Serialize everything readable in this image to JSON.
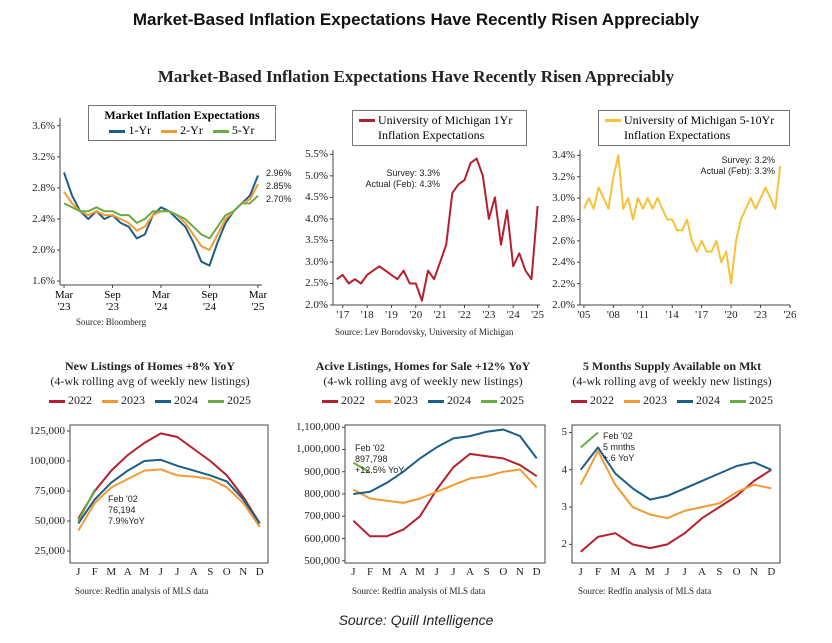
{
  "header": {
    "title": "Market-Based Inflation Expectations Have Recently Risen Appreciably"
  },
  "figure": {
    "title": "Market-Based Inflation Expectations Have Recently Risen Appreciably"
  },
  "footer": {
    "source": "Source: Quill Intelligence"
  },
  "chart_data": [
    {
      "type": "line",
      "title": "Market Inflation Expectations",
      "categories": [
        "Mar '23",
        null,
        null,
        null,
        null,
        null,
        "Sep '23",
        null,
        null,
        null,
        null,
        null,
        "Mar '24",
        null,
        null,
        null,
        null,
        null,
        "Sep '24",
        null,
        null,
        null,
        null,
        null,
        "Mar '25"
      ],
      "series": [
        {
          "name": "1-Yr",
          "color": "#1d5e87",
          "values": [
            3.0,
            2.7,
            2.5,
            2.4,
            2.5,
            2.4,
            2.45,
            2.35,
            2.3,
            2.15,
            2.2,
            2.45,
            2.55,
            2.5,
            2.4,
            2.3,
            2.1,
            1.85,
            1.8,
            2.1,
            2.35,
            2.5,
            2.6,
            2.7,
            2.96
          ]
        },
        {
          "name": "2-Yr",
          "color": "#f39a32",
          "values": [
            2.75,
            2.6,
            2.5,
            2.45,
            2.5,
            2.45,
            2.45,
            2.4,
            2.35,
            2.25,
            2.3,
            2.45,
            2.5,
            2.5,
            2.45,
            2.35,
            2.2,
            2.05,
            2.0,
            2.2,
            2.4,
            2.5,
            2.6,
            2.65,
            2.85
          ]
        },
        {
          "name": "5-Yr",
          "color": "#6aab46",
          "values": [
            2.6,
            2.55,
            2.5,
            2.5,
            2.55,
            2.5,
            2.5,
            2.45,
            2.45,
            2.35,
            2.4,
            2.5,
            2.5,
            2.5,
            2.45,
            2.4,
            2.3,
            2.2,
            2.15,
            2.3,
            2.45,
            2.5,
            2.6,
            2.6,
            2.7
          ]
        }
      ],
      "ylim": [
        1.55,
        3.7
      ],
      "yticks": [
        {
          "value": 1.6,
          "label": "1.6%"
        },
        {
          "value": 2.0,
          "label": "2.0%"
        },
        {
          "value": 2.4,
          "label": "2.4%"
        },
        {
          "value": 2.8,
          "label": "2.8%"
        },
        {
          "value": 3.2,
          "label": "3.2%"
        },
        {
          "value": 3.6,
          "label": "3.6%"
        }
      ],
      "annotations": [
        "2.96%",
        "2.85%",
        "2.70%"
      ],
      "source": "Source: Bloomberg"
    },
    {
      "type": "line",
      "x": [
        2016.75,
        2017,
        2017.25,
        2017.5,
        2017.75,
        2018,
        2018.25,
        2018.5,
        2018.75,
        2019,
        2019.25,
        2019.5,
        2019.75,
        2020,
        2020.25,
        2020.5,
        2020.75,
        2021,
        2021.25,
        2021.5,
        2021.75,
        2022,
        2022.25,
        2022.5,
        2022.75,
        2023,
        2023.25,
        2023.5,
        2023.75,
        2024,
        2024.25,
        2024.5,
        2024.75,
        2025
      ],
      "series": [
        {
          "name": "University of Michigan 1Yr Inflation Expectations",
          "color": "#b5202e",
          "values": [
            2.6,
            2.7,
            2.5,
            2.6,
            2.5,
            2.7,
            2.8,
            2.9,
            2.8,
            2.7,
            2.6,
            2.8,
            2.5,
            2.5,
            2.1,
            2.8,
            2.6,
            3.0,
            3.4,
            4.6,
            4.8,
            4.9,
            5.3,
            5.4,
            5.0,
            4.0,
            4.5,
            3.4,
            4.2,
            2.9,
            3.2,
            2.8,
            2.6,
            4.3
          ]
        }
      ],
      "xlim": [
        2016.6,
        2025.1
      ],
      "xticks": [
        {
          "value": 2017,
          "label": "'17"
        },
        {
          "value": 2018,
          "label": "'18"
        },
        {
          "value": 2019,
          "label": "'19"
        },
        {
          "value": 2020,
          "label": "'20"
        },
        {
          "value": 2021,
          "label": "'21"
        },
        {
          "value": 2022,
          "label": "'22"
        },
        {
          "value": 2023,
          "label": "'23"
        },
        {
          "value": 2024,
          "label": "'24"
        },
        {
          "value": 2025,
          "label": "'25"
        }
      ],
      "ylim": [
        2.0,
        5.6
      ],
      "yticks": [
        {
          "value": 2.0,
          "label": "2.0%"
        },
        {
          "value": 2.5,
          "label": "2.5%"
        },
        {
          "value": 3.0,
          "label": "3.0%"
        },
        {
          "value": 3.5,
          "label": "3.5%"
        },
        {
          "value": 4.0,
          "label": "4.0%"
        },
        {
          "value": 4.5,
          "label": "4.5%"
        },
        {
          "value": 5.0,
          "label": "5.0%"
        },
        {
          "value": 5.5,
          "label": "5.5%"
        }
      ],
      "annotations": [
        "Survey: 3.3%",
        "Actual (Feb): 4.3%"
      ],
      "source": "Source: Lev Borodovsky, University of Michigan"
    },
    {
      "type": "line",
      "x": [
        2005,
        2005.5,
        2006,
        2006.5,
        2007,
        2007.5,
        2008,
        2008.5,
        2009,
        2009.5,
        2010,
        2010.5,
        2011,
        2011.5,
        2012,
        2012.5,
        2013,
        2013.5,
        2014,
        2014.5,
        2015,
        2015.5,
        2016,
        2016.5,
        2017,
        2017.5,
        2018,
        2018.5,
        2019,
        2019.5,
        2020,
        2020.5,
        2021,
        2021.5,
        2022,
        2022.5,
        2023,
        2023.5,
        2024,
        2024.5,
        2025
      ],
      "series": [
        {
          "name": "University of Michigan 5-10Yr Inflation Expectations",
          "color": "#f7c23a",
          "values": [
            2.9,
            3.0,
            2.9,
            3.1,
            3.0,
            2.9,
            3.2,
            3.4,
            2.9,
            3.0,
            2.8,
            3.0,
            2.9,
            3.0,
            2.9,
            3.0,
            2.9,
            2.8,
            2.8,
            2.7,
            2.7,
            2.8,
            2.6,
            2.5,
            2.6,
            2.5,
            2.5,
            2.6,
            2.4,
            2.5,
            2.2,
            2.6,
            2.8,
            2.9,
            3.0,
            2.9,
            3.0,
            3.1,
            3.0,
            2.9,
            3.3
          ]
        }
      ],
      "xlim": [
        2004.6,
        2026
      ],
      "xticks": [
        {
          "value": 2005,
          "label": "'05"
        },
        {
          "value": 2008,
          "label": "'08"
        },
        {
          "value": 2011,
          "label": "'11"
        },
        {
          "value": 2014,
          "label": "'14"
        },
        {
          "value": 2017,
          "label": "'17"
        },
        {
          "value": 2020,
          "label": "'20"
        },
        {
          "value": 2023,
          "label": "'23"
        },
        {
          "value": 2026,
          "label": "'26"
        }
      ],
      "ylim": [
        2.0,
        3.45
      ],
      "yticks": [
        {
          "value": 2.0,
          "label": "2.0%"
        },
        {
          "value": 2.2,
          "label": "2.2%"
        },
        {
          "value": 2.4,
          "label": "2.4%"
        },
        {
          "value": 2.6,
          "label": "2.6%"
        },
        {
          "value": 2.8,
          "label": "2.8%"
        },
        {
          "value": 3.0,
          "label": "3.0%"
        },
        {
          "value": 3.2,
          "label": "3.2%"
        },
        {
          "value": 3.4,
          "label": "3.4%"
        }
      ],
      "annotations": [
        "Survey: 3.2%",
        "Actual (Feb): 3.3%"
      ]
    },
    {
      "type": "line",
      "title": "New Listings of Homes +8% YoY",
      "subtitle": "(4-wk rolling avg of weekly new listings)",
      "categories": [
        "J",
        "F",
        "M",
        "A",
        "M",
        "J",
        "J",
        "A",
        "S",
        "O",
        "N",
        "D"
      ],
      "series": [
        {
          "name": "2022",
          "color": "#b5202e",
          "values": [
            52000,
            75000,
            92000,
            105000,
            115000,
            123000,
            120000,
            110000,
            100000,
            88000,
            70000,
            48000
          ]
        },
        {
          "name": "2023",
          "color": "#f39a32",
          "values": [
            42000,
            65000,
            78000,
            85000,
            92000,
            93000,
            88000,
            87000,
            85000,
            78000,
            65000,
            45000
          ]
        },
        {
          "name": "2024",
          "color": "#1d5e87",
          "values": [
            48000,
            68000,
            82000,
            92000,
            100000,
            101000,
            96000,
            92000,
            88000,
            83000,
            68000,
            48000
          ]
        },
        {
          "name": "2025",
          "color": "#6aab46",
          "values": [
            50000,
            76194,
            null,
            null,
            null,
            null,
            null,
            null,
            null,
            null,
            null,
            null
          ]
        }
      ],
      "ylim": [
        15000,
        130000
      ],
      "yticks": [
        {
          "value": 25000,
          "label": "25,000"
        },
        {
          "value": 50000,
          "label": "50,000"
        },
        {
          "value": 75000,
          "label": "75,000"
        },
        {
          "value": 100000,
          "label": "100,000"
        },
        {
          "value": 125000,
          "label": "125,000"
        }
      ],
      "annotations": [
        "Feb '02",
        "76,194",
        "7.9%YoY"
      ],
      "source": "Source: Redfin analysis of MLS data"
    },
    {
      "type": "line",
      "title": "Acive Listings, Homes for Sale +12% YoY",
      "subtitle": "(4-wk rolling avg of weekly new listings)",
      "categories": [
        "J",
        "F",
        "M",
        "A",
        "M",
        "J",
        "J",
        "A",
        "S",
        "O",
        "N",
        "D"
      ],
      "series": [
        {
          "name": "2022",
          "color": "#b5202e",
          "values": [
            680000,
            610000,
            610000,
            640000,
            700000,
            820000,
            920000,
            980000,
            970000,
            960000,
            930000,
            880000
          ]
        },
        {
          "name": "2023",
          "color": "#f39a32",
          "values": [
            820000,
            780000,
            770000,
            760000,
            780000,
            810000,
            840000,
            870000,
            880000,
            900000,
            910000,
            830000
          ]
        },
        {
          "name": "2024",
          "color": "#1d5e87",
          "values": [
            800000,
            810000,
            850000,
            900000,
            960000,
            1010000,
            1050000,
            1060000,
            1080000,
            1090000,
            1060000,
            960000
          ]
        },
        {
          "name": "2025",
          "color": "#6aab46",
          "values": [
            940000,
            897798,
            null,
            null,
            null,
            null,
            null,
            null,
            null,
            null,
            null,
            null
          ]
        }
      ],
      "ylim": [
        490000,
        1110000
      ],
      "yticks": [
        {
          "value": 500000,
          "label": "500,000"
        },
        {
          "value": 600000,
          "label": "600,000"
        },
        {
          "value": 700000,
          "label": "700,000"
        },
        {
          "value": 800000,
          "label": "800,000"
        },
        {
          "value": 900000,
          "label": "900,000"
        },
        {
          "value": 1000000,
          "label": "1,000,000"
        },
        {
          "value": 1100000,
          "label": "1,100,000"
        }
      ],
      "annotations": [
        "Feb '02",
        "897,798",
        "+12.5% YoY"
      ],
      "source": "Source: Redfin analysis of MLS data"
    },
    {
      "type": "line",
      "title": "5 Months Supply Available on Mkt",
      "subtitle": "(4-wk rolling avg of weekly new listings)",
      "categories": [
        "J",
        "F",
        "M",
        "A",
        "M",
        "J",
        "J",
        "A",
        "S",
        "O",
        "N",
        "D"
      ],
      "series": [
        {
          "name": "2022",
          "color": "#b5202e",
          "values": [
            1.8,
            2.2,
            2.3,
            2.0,
            1.9,
            2.0,
            2.3,
            2.7,
            3.0,
            3.3,
            3.7,
            4.0
          ]
        },
        {
          "name": "2023",
          "color": "#f39a32",
          "values": [
            3.6,
            4.5,
            3.6,
            3.0,
            2.8,
            2.7,
            2.9,
            3.0,
            3.1,
            3.4,
            3.6,
            3.5
          ]
        },
        {
          "name": "2024",
          "color": "#1d5e87",
          "values": [
            4.0,
            4.6,
            3.9,
            3.5,
            3.2,
            3.3,
            3.5,
            3.7,
            3.9,
            4.1,
            4.2,
            4.0
          ]
        },
        {
          "name": "2025",
          "color": "#6aab46",
          "values": [
            4.6,
            5.0,
            null,
            null,
            null,
            null,
            null,
            null,
            null,
            null,
            null,
            null
          ]
        }
      ],
      "ylim": [
        1.5,
        5.2
      ],
      "yticks": [
        2,
        3,
        4,
        5
      ],
      "annotations": [
        "Feb '02",
        "5 mnths",
        "+.6 YoY"
      ],
      "source": "Source: Redfin analysis of MLS data"
    }
  ]
}
